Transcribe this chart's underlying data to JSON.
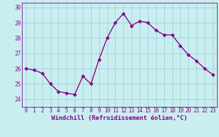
{
  "x": [
    0,
    1,
    2,
    3,
    4,
    5,
    6,
    7,
    8,
    9,
    10,
    11,
    12,
    13,
    14,
    15,
    16,
    17,
    18,
    19,
    20,
    21,
    22,
    23
  ],
  "y": [
    26.0,
    25.9,
    25.7,
    25.0,
    24.5,
    24.4,
    24.3,
    25.5,
    25.0,
    26.6,
    28.0,
    29.0,
    29.6,
    28.8,
    29.1,
    29.0,
    28.5,
    28.2,
    28.2,
    27.5,
    26.9,
    26.5,
    26.0,
    25.6
  ],
  "line_color": "#880088",
  "marker": "D",
  "marker_size": 2.5,
  "bg_color": "#c8eef0",
  "grid_color": "#a0d0d8",
  "xlabel": "Windchill (Refroidissement éolien,°C)",
  "xlabel_color": "#880088",
  "ylim_min": 23.5,
  "ylim_max": 30.3,
  "xlim_min": -0.5,
  "xlim_max": 23.5,
  "yticks": [
    24,
    25,
    26,
    27,
    28,
    29,
    30
  ],
  "xticks": [
    0,
    1,
    2,
    3,
    4,
    5,
    6,
    7,
    8,
    9,
    10,
    11,
    12,
    13,
    14,
    15,
    16,
    17,
    18,
    19,
    20,
    21,
    22,
    23
  ],
  "tick_fontsize": 5.5,
  "ylabel_fontsize": 6.5,
  "linewidth": 1.0
}
